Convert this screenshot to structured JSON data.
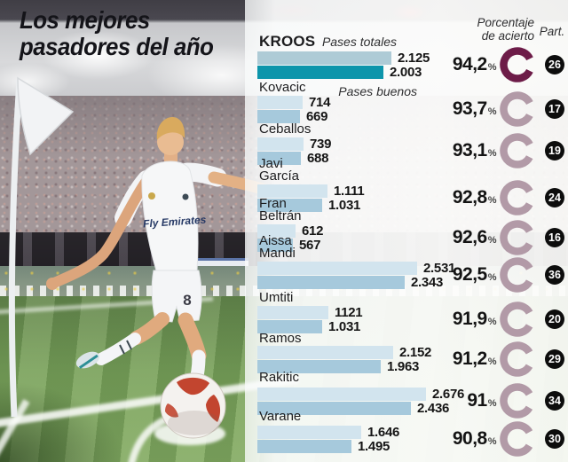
{
  "title": {
    "line1": "Los mejores",
    "line2": "pasadores del año"
  },
  "legend": {
    "pases_totales": "Pases totales",
    "pases_buenos": "Pases buenos"
  },
  "columns": {
    "porcentaje_line1": "Porcentaje",
    "porcentaje_line2": "de acierto",
    "part": "Part."
  },
  "percent_sign": "%",
  "colors": {
    "accent_dark": "#6d1c48",
    "donut_muted": "#b29aa7",
    "bar_total": "#d2e4ee",
    "bar_good": "#a6c9dc",
    "bar_total_highlight": "#aecbd6",
    "bar_good_highlight": "#0d95ab",
    "part_badge": "#0d0d0d"
  },
  "chart_data": {
    "type": "bar",
    "orientation": "horizontal",
    "title": "Los mejores pasadores del año",
    "series": [
      "Pases totales",
      "Pases buenos"
    ],
    "x_max": 2676,
    "players": [
      {
        "name": "KROOS",
        "name_lines": [
          "KROOS"
        ],
        "pases_totales": 2125,
        "pases_buenos": 2003,
        "totales_label": "2.125",
        "buenos_label": "2.003",
        "porcentaje": "94,2",
        "part": "26",
        "highlight": true
      },
      {
        "name": "Kovacic",
        "name_lines": [
          "Kovacic"
        ],
        "pases_totales": 714,
        "pases_buenos": 669,
        "totales_label": "714",
        "buenos_label": "669",
        "porcentaje": "93,7",
        "part": "17",
        "highlight": false
      },
      {
        "name": "Ceballos",
        "name_lines": [
          "Ceballos"
        ],
        "pases_totales": 739,
        "pases_buenos": 688,
        "totales_label": "739",
        "buenos_label": "688",
        "porcentaje": "93,1",
        "part": "19",
        "highlight": false
      },
      {
        "name": "Javi García",
        "name_lines": [
          "Javi",
          "García"
        ],
        "pases_totales": 1111,
        "pases_buenos": 1031,
        "totales_label": "1.111",
        "buenos_label": "1.031",
        "porcentaje": "92,8",
        "part": "24",
        "highlight": false
      },
      {
        "name": "Fran Beltrán",
        "name_lines": [
          "Fran",
          "Beltrán"
        ],
        "pases_totales": 612,
        "pases_buenos": 567,
        "totales_label": "612",
        "buenos_label": "567",
        "porcentaje": "92,6",
        "part": "16",
        "highlight": false
      },
      {
        "name": "Aissa Mandi",
        "name_lines": [
          "Aissa",
          "Mandi"
        ],
        "pases_totales": 2531,
        "pases_buenos": 2343,
        "totales_label": "2.531",
        "buenos_label": "2.343",
        "porcentaje": "92,5",
        "part": "36",
        "highlight": false
      },
      {
        "name": "Umtiti",
        "name_lines": [
          "Umtiti"
        ],
        "pases_totales": 1121,
        "pases_buenos": 1031,
        "totales_label": "1121",
        "buenos_label": "1.031",
        "porcentaje": "91,9",
        "part": "20",
        "highlight": false
      },
      {
        "name": "Ramos",
        "name_lines": [
          "Ramos"
        ],
        "pases_totales": 2152,
        "pases_buenos": 1963,
        "totales_label": "2.152",
        "buenos_label": "1.963",
        "porcentaje": "91,2",
        "part": "29",
        "highlight": false
      },
      {
        "name": "Rakitic",
        "name_lines": [
          "Rakitic"
        ],
        "pases_totales": 2676,
        "pases_buenos": 2436,
        "totales_label": "2.676",
        "buenos_label": "2.436",
        "porcentaje": "91",
        "part": "34",
        "highlight": false
      },
      {
        "name": "Varane",
        "name_lines": [
          "Varane"
        ],
        "pases_totales": 1646,
        "pases_buenos": 1495,
        "totales_label": "1.646",
        "buenos_label": "1.495",
        "porcentaje": "90,8",
        "part": "30",
        "highlight": false
      }
    ]
  }
}
